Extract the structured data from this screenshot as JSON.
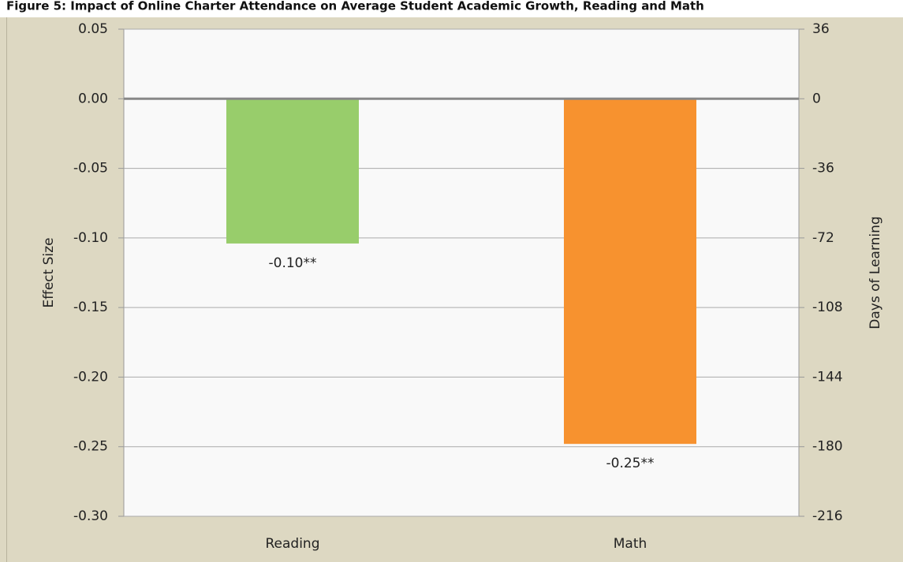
{
  "chart_data": {
    "type": "bar",
    "title": "Figure 5: Impact of Online Charter Attendance on Average Student Academic Growth, Reading and Math",
    "ylabel": "Effect Size",
    "y2label": "Days of Learning",
    "categories": [
      "Reading",
      "Math"
    ],
    "values": [
      -0.104,
      -0.248
    ],
    "value_labels": [
      "-0.10**",
      "-0.25**"
    ],
    "colors": [
      "#98cd6b",
      "#f7922f"
    ],
    "ylim": [
      -0.3,
      0.05
    ],
    "yticks": [
      {
        "value": 0.05,
        "label": "0.05"
      },
      {
        "value": 0,
        "label": "0.00"
      },
      {
        "value": -0.05,
        "label": "-0.05"
      },
      {
        "value": -0.1,
        "label": "-0.10"
      },
      {
        "value": -0.15,
        "label": "-0.15"
      },
      {
        "value": -0.2,
        "label": "-0.20"
      },
      {
        "value": -0.25,
        "label": "-0.25"
      },
      {
        "value": -0.3,
        "label": "-0.30"
      }
    ],
    "y2lim": [
      -216,
      36
    ],
    "y2ticks": [
      36,
      0,
      -36,
      -72,
      -108,
      -144,
      -180,
      -216
    ],
    "grid": true
  }
}
